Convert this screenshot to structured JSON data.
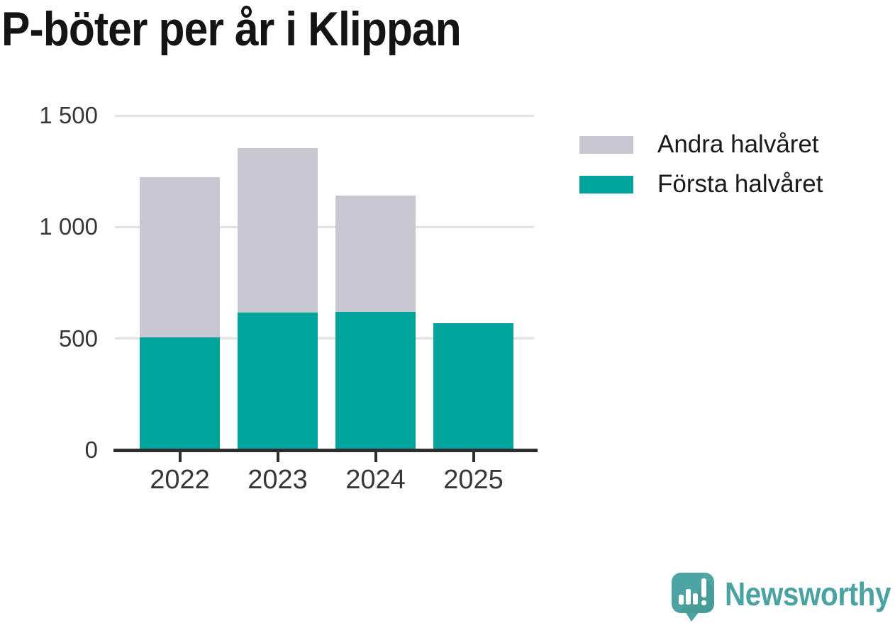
{
  "chart_data": {
    "type": "bar",
    "stacked": true,
    "title": "P-böter per år i Klippan",
    "categories": [
      "2022",
      "2023",
      "2024",
      "2025"
    ],
    "series": [
      {
        "name": "Första halvåret",
        "color": "#00a49b",
        "values": [
          505,
          615,
          620,
          570
        ]
      },
      {
        "name": "Andra halvåret",
        "color": "#c9c7d1",
        "values": [
          720,
          740,
          520,
          0
        ]
      }
    ],
    "estimated_totals": [
      1225,
      1355,
      1140,
      570
    ],
    "xlabel": "",
    "ylabel": "",
    "ylim": [
      0,
      1500
    ],
    "yticks": [
      {
        "value": 0,
        "label": "0"
      },
      {
        "value": 500,
        "label": "500"
      },
      {
        "value": 1000,
        "label": "1 000"
      },
      {
        "value": 1500,
        "label": "1 500"
      }
    ],
    "grid": true,
    "legend_position": "top-right"
  },
  "legend": {
    "items": [
      {
        "label": "Andra halvåret",
        "color": "#c9c7d1"
      },
      {
        "label": "Första halvåret",
        "color": "#00a49b"
      }
    ]
  },
  "branding": {
    "name": "Newsworthy",
    "text_color": "#4ba3a1",
    "icon_color": "#4ca5a2"
  }
}
